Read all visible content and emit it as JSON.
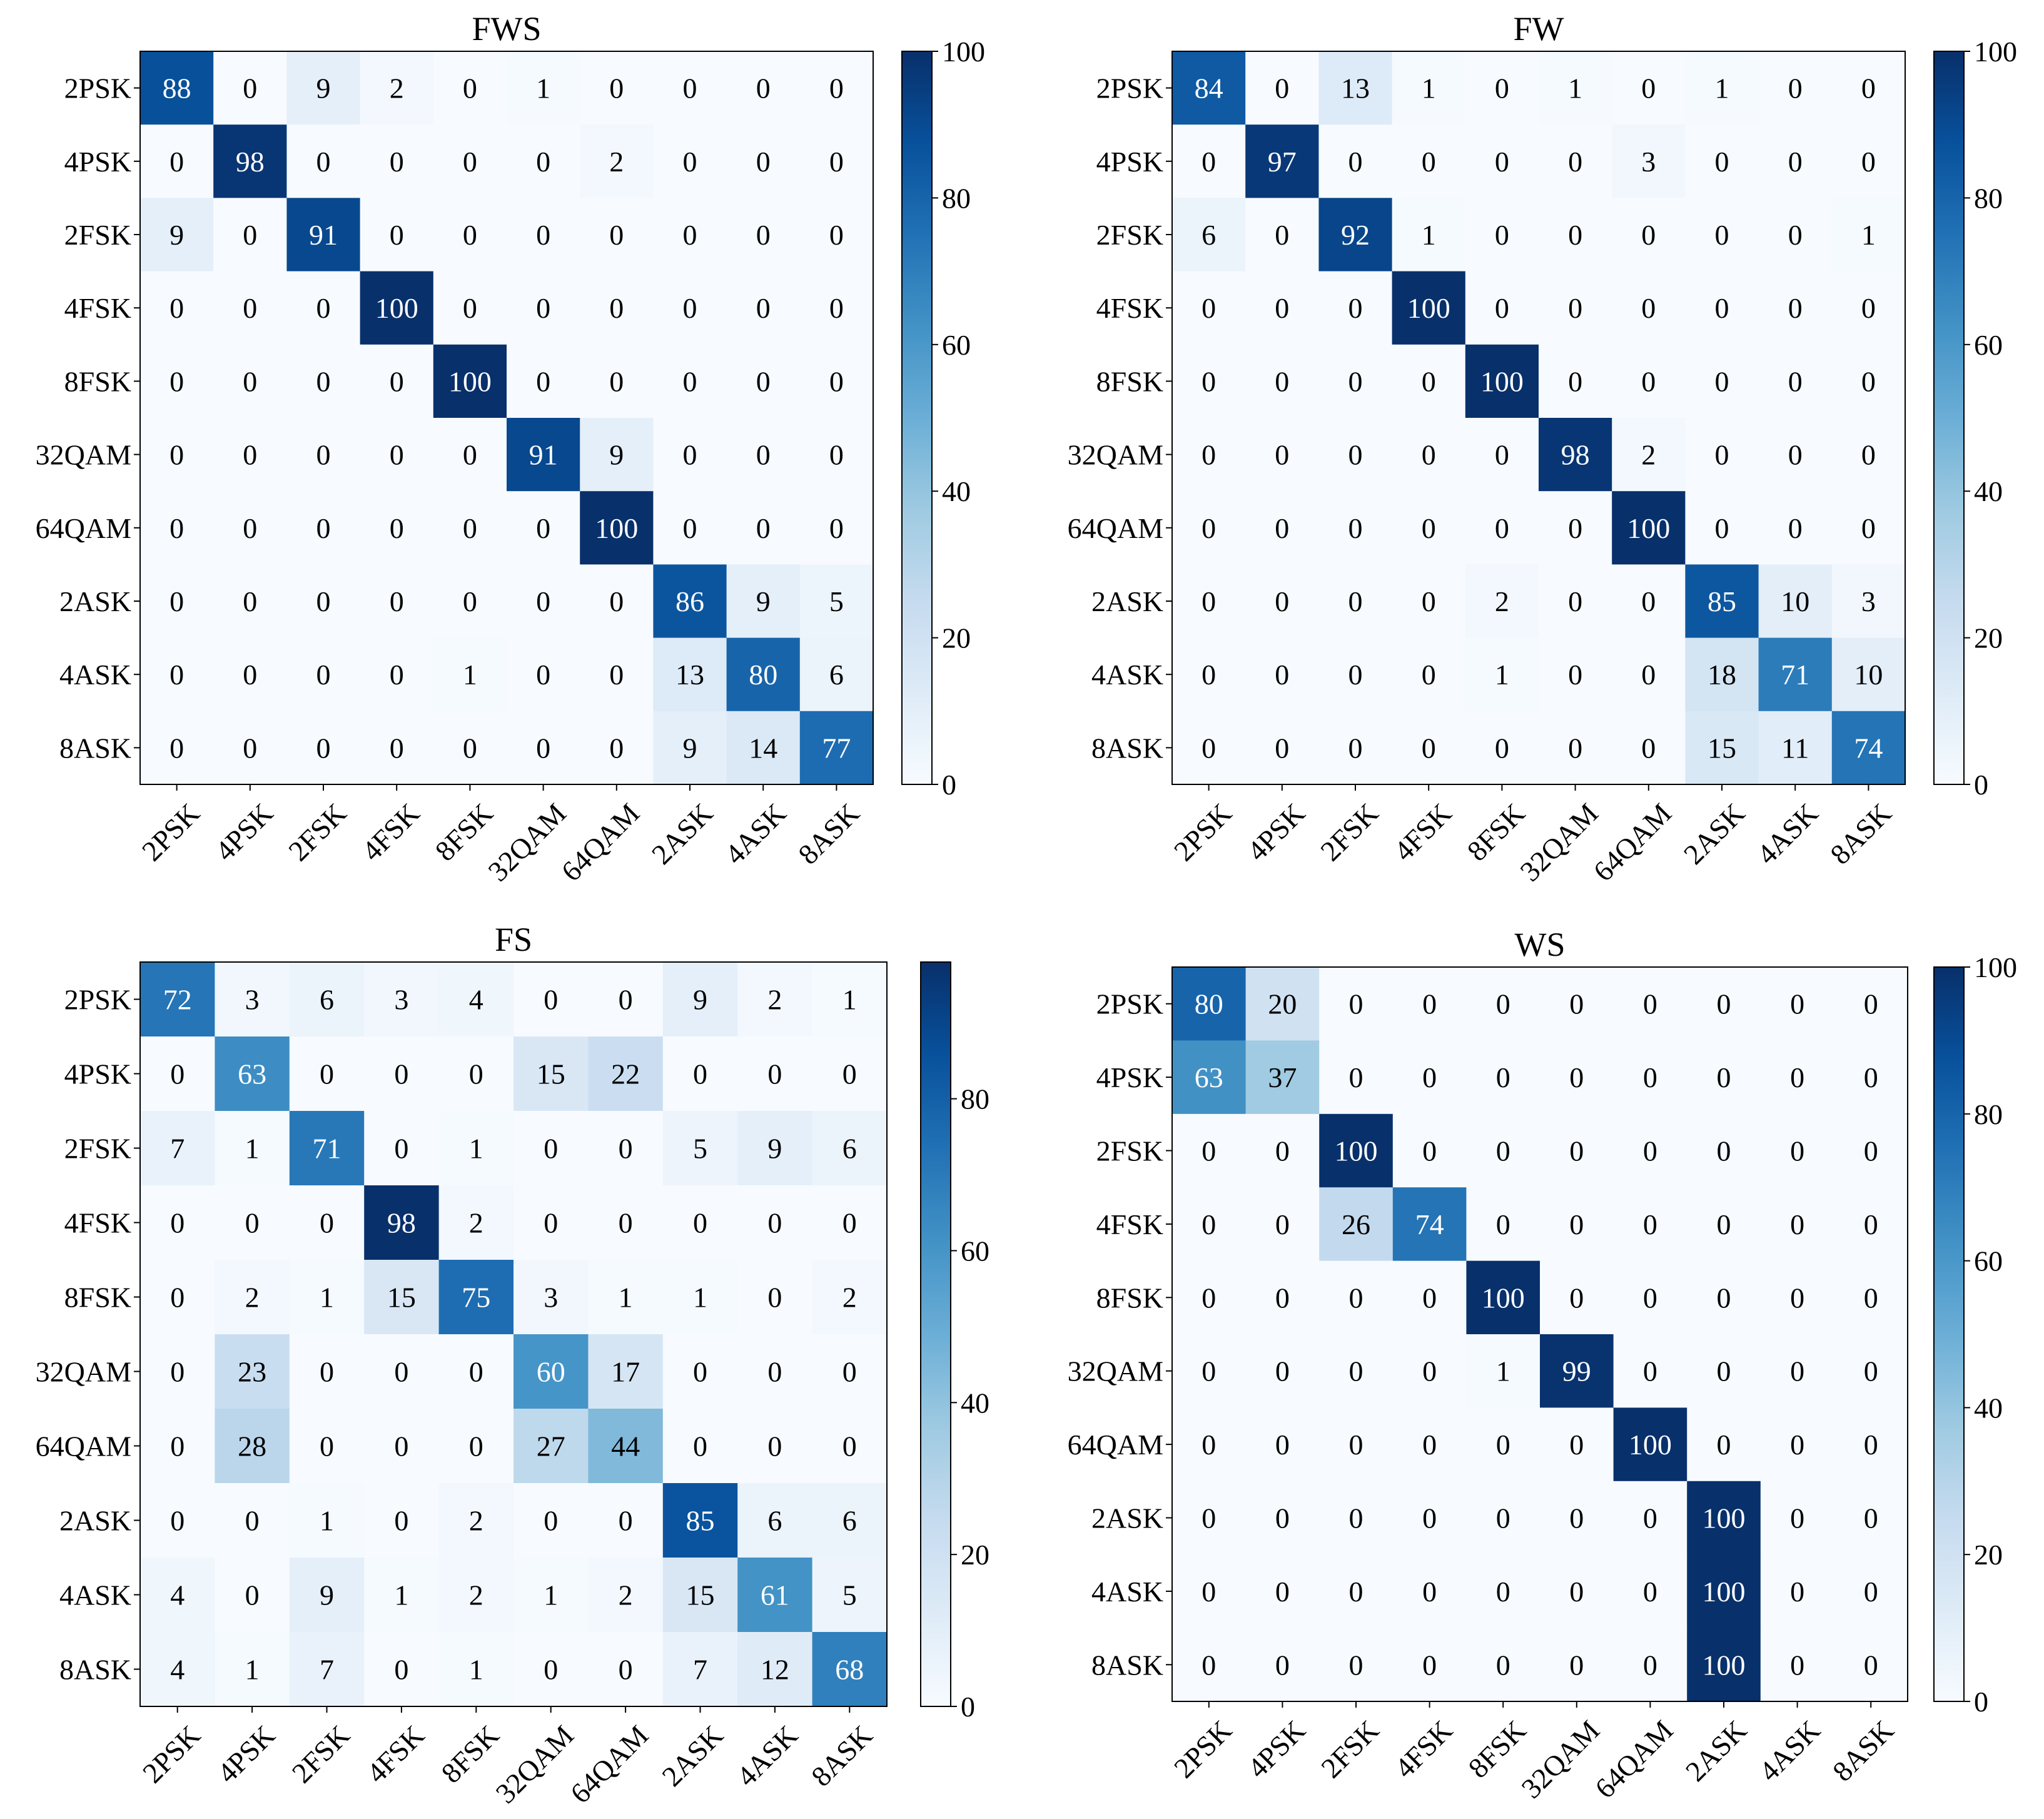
{
  "figure": {
    "colormap_low": "#f7fbff",
    "colormap_high": "#08306b",
    "panels": [
      "FWS",
      "FW",
      "FS",
      "WS"
    ]
  },
  "chart_data": [
    {
      "type": "heatmap",
      "title": "FWS",
      "xlabel": "",
      "ylabel": "",
      "x_categories": [
        "2PSK",
        "4PSK",
        "2FSK",
        "4FSK",
        "8FSK",
        "32QAM",
        "64QAM",
        "2ASK",
        "4ASK",
        "8ASK"
      ],
      "y_categories": [
        "2PSK",
        "4PSK",
        "2FSK",
        "4FSK",
        "8FSK",
        "32QAM",
        "64QAM",
        "2ASK",
        "4ASK",
        "8ASK"
      ],
      "values": [
        [
          88,
          0,
          9,
          2,
          0,
          1,
          0,
          0,
          0,
          0
        ],
        [
          0,
          98,
          0,
          0,
          0,
          0,
          2,
          0,
          0,
          0
        ],
        [
          9,
          0,
          91,
          0,
          0,
          0,
          0,
          0,
          0,
          0
        ],
        [
          0,
          0,
          0,
          100,
          0,
          0,
          0,
          0,
          0,
          0
        ],
        [
          0,
          0,
          0,
          0,
          100,
          0,
          0,
          0,
          0,
          0
        ],
        [
          0,
          0,
          0,
          0,
          0,
          91,
          9,
          0,
          0,
          0
        ],
        [
          0,
          0,
          0,
          0,
          0,
          0,
          100,
          0,
          0,
          0
        ],
        [
          0,
          0,
          0,
          0,
          0,
          0,
          0,
          86,
          9,
          5
        ],
        [
          0,
          0,
          0,
          0,
          1,
          0,
          0,
          13,
          80,
          6
        ],
        [
          0,
          0,
          0,
          0,
          0,
          0,
          0,
          9,
          14,
          77
        ]
      ],
      "colorbar": {
        "range": [
          0,
          100
        ],
        "ticks": [
          0,
          20,
          40,
          60,
          80,
          100
        ]
      }
    },
    {
      "type": "heatmap",
      "title": "FW",
      "xlabel": "",
      "ylabel": "",
      "x_categories": [
        "2PSK",
        "4PSK",
        "2FSK",
        "4FSK",
        "8FSK",
        "32QAM",
        "64QAM",
        "2ASK",
        "4ASK",
        "8ASK"
      ],
      "y_categories": [
        "2PSK",
        "4PSK",
        "2FSK",
        "4FSK",
        "8FSK",
        "32QAM",
        "64QAM",
        "2ASK",
        "4ASK",
        "8ASK"
      ],
      "values": [
        [
          84,
          0,
          13,
          1,
          0,
          1,
          0,
          1,
          0,
          0
        ],
        [
          0,
          97,
          0,
          0,
          0,
          0,
          3,
          0,
          0,
          0
        ],
        [
          6,
          0,
          92,
          1,
          0,
          0,
          0,
          0,
          0,
          1
        ],
        [
          0,
          0,
          0,
          100,
          0,
          0,
          0,
          0,
          0,
          0
        ],
        [
          0,
          0,
          0,
          0,
          100,
          0,
          0,
          0,
          0,
          0
        ],
        [
          0,
          0,
          0,
          0,
          0,
          98,
          2,
          0,
          0,
          0
        ],
        [
          0,
          0,
          0,
          0,
          0,
          0,
          100,
          0,
          0,
          0
        ],
        [
          0,
          0,
          0,
          0,
          2,
          0,
          0,
          85,
          10,
          3
        ],
        [
          0,
          0,
          0,
          0,
          1,
          0,
          0,
          18,
          71,
          10
        ],
        [
          0,
          0,
          0,
          0,
          0,
          0,
          0,
          15,
          11,
          74
        ]
      ],
      "colorbar": {
        "range": [
          0,
          100
        ],
        "ticks": [
          0,
          20,
          40,
          60,
          80,
          100
        ]
      }
    },
    {
      "type": "heatmap",
      "title": "FS",
      "xlabel": "",
      "ylabel": "",
      "x_categories": [
        "2PSK",
        "4PSK",
        "2FSK",
        "4FSK",
        "8FSK",
        "32QAM",
        "64QAM",
        "2ASK",
        "4ASK",
        "8ASK"
      ],
      "y_categories": [
        "2PSK",
        "4PSK",
        "2FSK",
        "4FSK",
        "8FSK",
        "32QAM",
        "64QAM",
        "2ASK",
        "4ASK",
        "8ASK"
      ],
      "values": [
        [
          72,
          3,
          6,
          3,
          4,
          0,
          0,
          9,
          2,
          1
        ],
        [
          0,
          63,
          0,
          0,
          0,
          15,
          22,
          0,
          0,
          0
        ],
        [
          7,
          1,
          71,
          0,
          1,
          0,
          0,
          5,
          9,
          6
        ],
        [
          0,
          0,
          0,
          98,
          2,
          0,
          0,
          0,
          0,
          0
        ],
        [
          0,
          2,
          1,
          15,
          75,
          3,
          1,
          1,
          0,
          2
        ],
        [
          0,
          23,
          0,
          0,
          0,
          60,
          17,
          0,
          0,
          0
        ],
        [
          0,
          28,
          0,
          0,
          0,
          27,
          44,
          0,
          0,
          0
        ],
        [
          0,
          0,
          1,
          0,
          2,
          0,
          0,
          85,
          6,
          6
        ],
        [
          4,
          0,
          9,
          1,
          2,
          1,
          2,
          15,
          61,
          5
        ],
        [
          4,
          1,
          7,
          0,
          1,
          0,
          0,
          7,
          12,
          68
        ]
      ],
      "colorbar": {
        "range": [
          0,
          98
        ],
        "ticks": [
          0,
          20,
          40,
          60,
          80
        ]
      }
    },
    {
      "type": "heatmap",
      "title": "WS",
      "xlabel": "",
      "ylabel": "",
      "x_categories": [
        "2PSK",
        "4PSK",
        "2FSK",
        "4FSK",
        "8FSK",
        "32QAM",
        "64QAM",
        "2ASK",
        "4ASK",
        "8ASK"
      ],
      "y_categories": [
        "2PSK",
        "4PSK",
        "2FSK",
        "4FSK",
        "8FSK",
        "32QAM",
        "64QAM",
        "2ASK",
        "4ASK",
        "8ASK"
      ],
      "values": [
        [
          80,
          20,
          0,
          0,
          0,
          0,
          0,
          0,
          0,
          0
        ],
        [
          63,
          37,
          0,
          0,
          0,
          0,
          0,
          0,
          0,
          0
        ],
        [
          0,
          0,
          100,
          0,
          0,
          0,
          0,
          0,
          0,
          0
        ],
        [
          0,
          0,
          26,
          74,
          0,
          0,
          0,
          0,
          0,
          0
        ],
        [
          0,
          0,
          0,
          0,
          100,
          0,
          0,
          0,
          0,
          0
        ],
        [
          0,
          0,
          0,
          0,
          1,
          99,
          0,
          0,
          0,
          0
        ],
        [
          0,
          0,
          0,
          0,
          0,
          0,
          100,
          0,
          0,
          0
        ],
        [
          0,
          0,
          0,
          0,
          0,
          0,
          0,
          100,
          0,
          0
        ],
        [
          0,
          0,
          0,
          0,
          0,
          0,
          0,
          100,
          0,
          0
        ],
        [
          0,
          0,
          0,
          0,
          0,
          0,
          0,
          100,
          0,
          0
        ]
      ],
      "colorbar": {
        "range": [
          0,
          100
        ],
        "ticks": [
          0,
          20,
          40,
          60,
          80,
          100
        ]
      }
    }
  ]
}
